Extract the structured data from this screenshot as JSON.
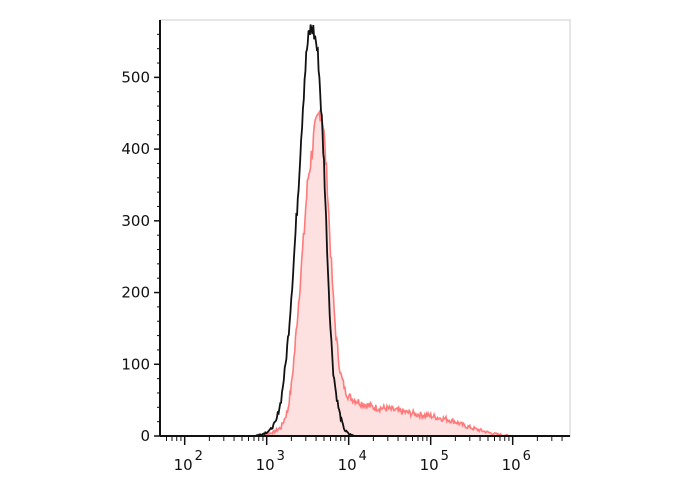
{
  "chart_data": {
    "type": "area",
    "title": "",
    "xlabel": "",
    "ylabel": "",
    "x_scale": "log",
    "xlim": [
      50,
      5000000
    ],
    "ylim": [
      0,
      580
    ],
    "x_ticks": [
      {
        "value": 100,
        "base": "10",
        "exp": "2"
      },
      {
        "value": 1000,
        "base": "10",
        "exp": "3"
      },
      {
        "value": 10000,
        "base": "10",
        "exp": "4"
      },
      {
        "value": 100000,
        "base": "10",
        "exp": "5"
      },
      {
        "value": 1000000,
        "base": "10",
        "exp": "6"
      }
    ],
    "y_ticks": [
      {
        "value": 0,
        "label": "0"
      },
      {
        "value": 100,
        "label": "100"
      },
      {
        "value": 200,
        "label": "200"
      },
      {
        "value": 300,
        "label": "300"
      },
      {
        "value": 400,
        "label": "400"
      },
      {
        "value": 500,
        "label": "500"
      }
    ],
    "grid": false,
    "legend": "none",
    "series": [
      {
        "style": "filled",
        "color": "#ff7a7a",
        "fill": "#fde0e0",
        "x": [
          700,
          900,
          1200,
          1500,
          1800,
          2000,
          2200,
          2500,
          2800,
          3000,
          3200,
          3500,
          3800,
          4000,
          4200,
          4500,
          4800,
          5000,
          5500,
          6000,
          6500,
          7000,
          7500,
          8000,
          9000,
          10000,
          12000,
          15000,
          20000,
          30000,
          40000,
          50000,
          70000,
          100000,
          130000,
          150000,
          200000,
          250000,
          300000,
          400000,
          500000,
          600000,
          800000,
          1000000,
          1500000,
          2000000
        ],
        "y": [
          0,
          2,
          5,
          12,
          35,
          70,
          120,
          200,
          270,
          320,
          360,
          390,
          420,
          430,
          440,
          455,
          445,
          420,
          350,
          260,
          190,
          140,
          110,
          85,
          65,
          55,
          50,
          45,
          40,
          38,
          35,
          33,
          30,
          28,
          25,
          24,
          20,
          15,
          12,
          8,
          5,
          3,
          1,
          0,
          0,
          0
        ]
      },
      {
        "style": "line",
        "color": "#111111",
        "x": [
          700,
          900,
          1100,
          1300,
          1500,
          1700,
          1900,
          2100,
          2300,
          2500,
          2700,
          2900,
          3100,
          3300,
          3500,
          3700,
          4000,
          4300,
          4600,
          5000,
          5300,
          5600,
          6000,
          6500,
          7000,
          7500,
          8000,
          8500,
          9000,
          10000,
          11000,
          12000,
          14000
        ],
        "y": [
          0,
          3,
          8,
          20,
          50,
          100,
          160,
          230,
          300,
          370,
          440,
          500,
          540,
          560,
          570,
          565,
          550,
          520,
          460,
          380,
          300,
          230,
          150,
          90,
          60,
          40,
          25,
          15,
          8,
          3,
          1,
          0,
          0
        ]
      }
    ]
  }
}
